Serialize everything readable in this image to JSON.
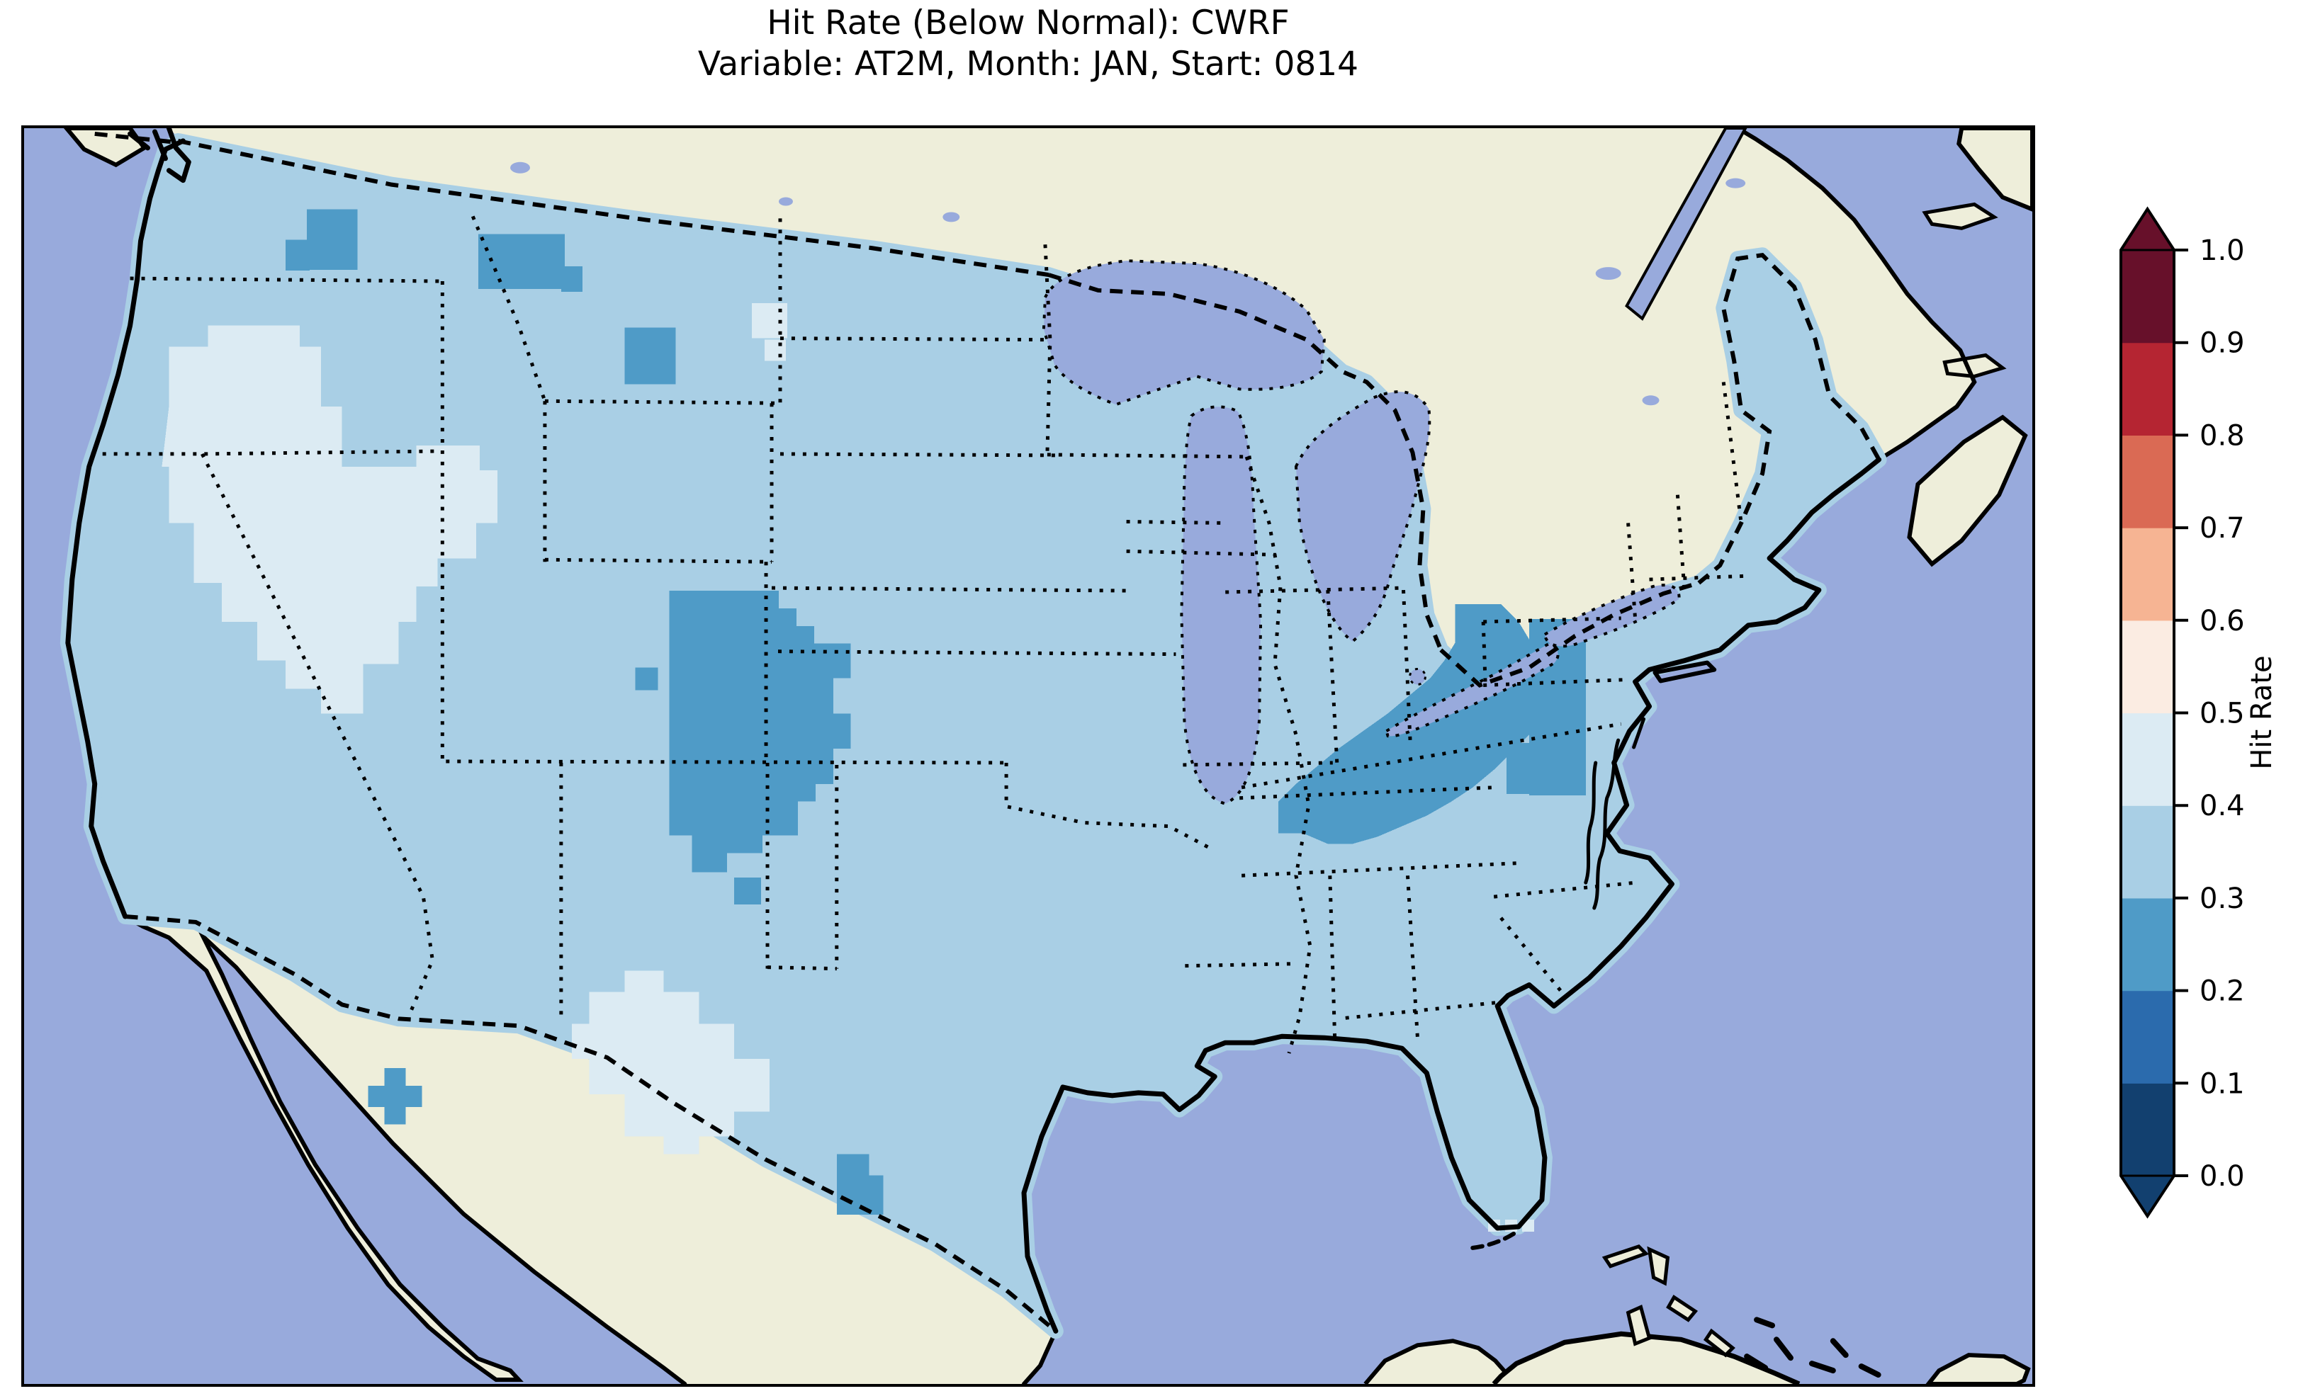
{
  "title": {
    "line1": "Hit Rate (Below Normal): CWRF",
    "line2": "Variable: AT2M, Month: JAN, Start: 0814"
  },
  "map": {
    "colors": {
      "ocean": "#98aadc",
      "lake": "#98aadc",
      "land": "#eeeeda",
      "coastline": "#000000",
      "frame": "#000000",
      "bin_02_03": "#4f9bc7",
      "bin_03_04": "#a9cfe5",
      "bin_04_05": "#dcebf3"
    },
    "border_styles": {
      "country_border": "dashed",
      "state_border": "dotted",
      "lake_outline": "dotted"
    }
  },
  "colorbar": {
    "label": "Hit Rate",
    "ticks": [
      "0.0",
      "0.1",
      "0.2",
      "0.3",
      "0.4",
      "0.5",
      "0.6",
      "0.7",
      "0.8",
      "0.9",
      "1.0"
    ],
    "outline_color": "#000000",
    "segments": [
      {
        "range": "0.0-0.1",
        "color": "#12406f"
      },
      {
        "range": "0.1-0.2",
        "color": "#2b6bad"
      },
      {
        "range": "0.2-0.3",
        "color": "#4f9bc7"
      },
      {
        "range": "0.3-0.4",
        "color": "#a9cfe5"
      },
      {
        "range": "0.4-0.5",
        "color": "#dcebf3"
      },
      {
        "range": "0.5-0.6",
        "color": "#fbece2"
      },
      {
        "range": "0.6-0.7",
        "color": "#f6b493"
      },
      {
        "range": "0.7-0.8",
        "color": "#da6a54"
      },
      {
        "range": "0.8-0.9",
        "color": "#b52532"
      },
      {
        "range": "0.9-1.0",
        "color": "#67102a"
      }
    ],
    "extend_low_color": "#12406f",
    "extend_high_color": "#67102a"
  },
  "chart_data": {
    "type": "heatmap",
    "title": "Hit Rate (Below Normal): CWRF",
    "subtitle": "Variable: AT2M, Month: JAN, Start: 0814",
    "model": "CWRF",
    "metric": "Hit Rate (Below Normal)",
    "variable": "AT2M",
    "month": "JAN",
    "start": "0814",
    "region": "Contiguous United States (CONUS) with surrounding Canada, Mexico, Caribbean",
    "colormap": "RdBu discrete, 10 bins, colorbar extended with arrows at both ends",
    "value_range": [
      0.0,
      1.0
    ],
    "colorbar_label": "Hit Rate",
    "colorbar_ticks": [
      0.0,
      0.1,
      0.2,
      0.3,
      0.4,
      0.5,
      0.6,
      0.7,
      0.8,
      0.9,
      1.0
    ],
    "bin_colors_low_to_high": [
      "#12406f",
      "#2b6bad",
      "#4f9bc7",
      "#a9cfe5",
      "#dcebf3",
      "#fbece2",
      "#f6b493",
      "#da6a54",
      "#b52532",
      "#67102a"
    ],
    "observed_value_summary": [
      {
        "area": "Most of CONUS (dominant background value)",
        "hit_rate_bin": "0.3-0.4"
      },
      {
        "area": "Great Basin: eastern Oregon, southern Idaho, Nevada, western Utah",
        "hit_rate_bin": "0.4-0.5"
      },
      {
        "area": "Southeastern New Mexico and far-west Texas",
        "hit_rate_bin": "0.4-0.5"
      },
      {
        "area": "Small cells in North Dakota and below the Florida tip",
        "hit_rate_bin": "0.4-0.5"
      },
      {
        "area": "Eastern Colorado / western Kansas block",
        "hit_rate_bin": "0.2-0.3"
      },
      {
        "area": "Central Appalachians: West Virginia, eastern Kentucky, Tennessee, western Virginia",
        "hit_rate_bin": "0.2-0.3"
      },
      {
        "area": "Scattered cells: northern Washington, western Montana, southern North Dakota, southeast Arizona, northeast New Mexico, southwest Texas",
        "hit_rate_bin": "0.2-0.3"
      },
      {
        "area": "Values in 0.5-1.0 bins",
        "hit_rate_bin": "not present on map"
      }
    ]
  }
}
